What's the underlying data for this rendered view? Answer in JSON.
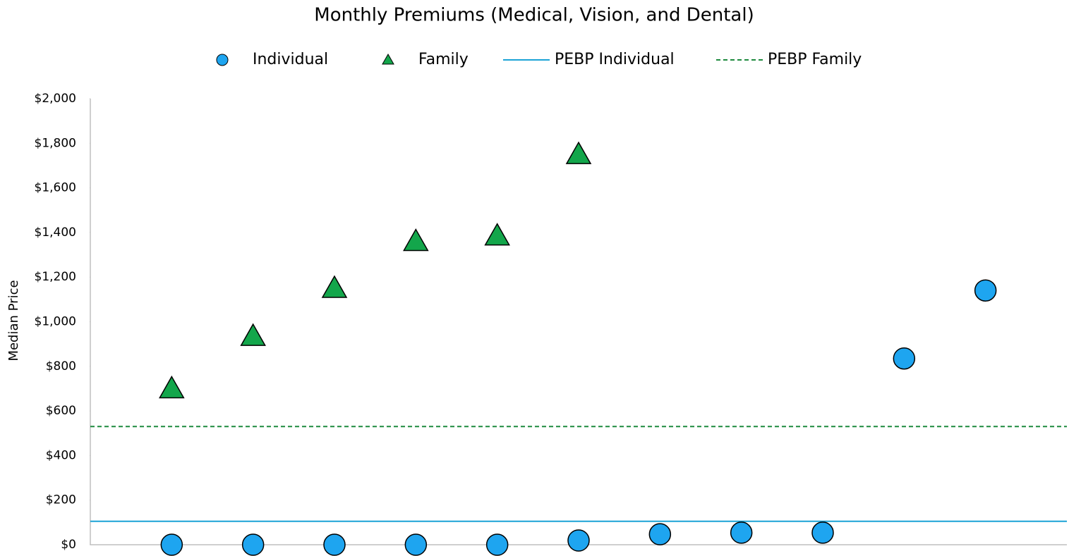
{
  "chart_data": {
    "type": "scatter",
    "title": "Monthly Premiums (Medical, Vision, and Dental)",
    "y_label": "Median Price",
    "x": [
      1,
      2,
      3,
      4,
      5,
      6,
      7,
      8,
      9,
      10,
      11
    ],
    "xlim": [
      0,
      12
    ],
    "ylim": [
      0,
      2000
    ],
    "yticks": [
      {
        "value": 0,
        "label": "$0"
      },
      {
        "value": 200,
        "label": "$200"
      },
      {
        "value": 400,
        "label": "$400"
      },
      {
        "value": 600,
        "label": "$600"
      },
      {
        "value": 800,
        "label": "$800"
      },
      {
        "value": 1000,
        "label": "$1,000"
      },
      {
        "value": 1200,
        "label": "$1,200"
      },
      {
        "value": 1400,
        "label": "$1,400"
      },
      {
        "value": 1600,
        "label": "$1,600"
      },
      {
        "value": 1800,
        "label": "$1,800"
      },
      {
        "value": 2000,
        "label": "$2,000"
      }
    ],
    "grid": false,
    "legend": "top",
    "series": [
      {
        "name": "Individual",
        "color": "#1ea5f0",
        "marker": "circle",
        "values": [
          0,
          0,
          0,
          0,
          0,
          19,
          47,
          54,
          54,
          835,
          1140
        ]
      },
      {
        "name": "Family",
        "color": "#13a64b",
        "marker": "triangle",
        "values": [
          700,
          935,
          1150,
          1360,
          1385,
          1750,
          null,
          null,
          null,
          null,
          null
        ]
      }
    ],
    "reference_lines": [
      {
        "name": "PEBP Individual",
        "color": "#1ba3d6",
        "style": "solid",
        "value": 105
      },
      {
        "name": "PEBP Family",
        "color": "#1e8a3e",
        "style": "dashed",
        "value": 530
      }
    ]
  }
}
